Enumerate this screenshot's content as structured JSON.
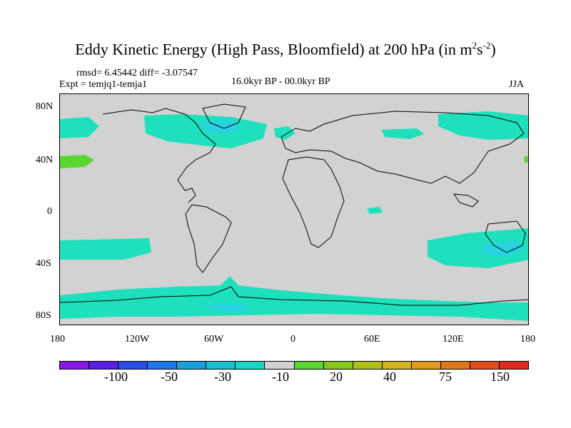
{
  "title": "Eddy Kinetic Energy (High Pass, Bloomfield) at 200 hPa (in m",
  "title_unit_base": "s",
  "title_exp1": "2",
  "title_exp2": "-2",
  "title_close": ")",
  "stats": "rmsd= 6.45442 diff= -3.07547",
  "expt": "Expt = temjq1-temja1",
  "period": "16.0kyr BP - 00.0kyr BP",
  "season": "JJA",
  "lat_ticks": [
    "80N",
    "40N",
    "0",
    "40S",
    "80S"
  ],
  "lon_ticks": [
    "180",
    "120W",
    "60W",
    "0",
    "60E",
    "120E",
    "180"
  ],
  "colorbar": {
    "colors": [
      "#8a18e6",
      "#5a1ee6",
      "#2a4ce8",
      "#1b78e6",
      "#1aa0dc",
      "#18c0d4",
      "#1ad8c8",
      "#d2d2d2",
      "#5ad630",
      "#86c81a",
      "#b0c01a",
      "#d2b41a",
      "#e09a1a",
      "#e0761a",
      "#e04c1a",
      "#e02a1a"
    ],
    "labels": [
      "-100",
      "-50",
      "-30",
      "-10",
      "20",
      "40",
      "75",
      "150"
    ]
  },
  "colors": {
    "land_bg": "#d2d2d2",
    "teal": "#1ee0bc",
    "cyan": "#28d2e0",
    "green": "#5ad630"
  }
}
